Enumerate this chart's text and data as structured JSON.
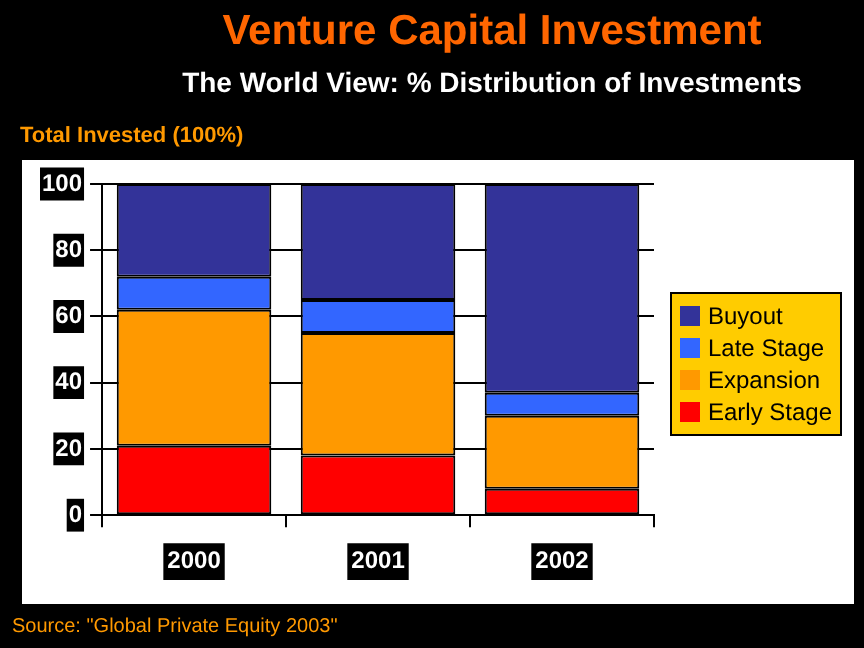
{
  "chart_data": {
    "type": "bar",
    "title": "Venture Capital Investment",
    "subtitle": "The World View: % Distribution of Investments",
    "ylabel": "Total Invested (100%)",
    "categories": [
      "2000",
      "2001",
      "2002"
    ],
    "series": [
      {
        "name": "Early Stage",
        "color": "#ff0000",
        "values": [
          21,
          18,
          8
        ]
      },
      {
        "name": "Expansion",
        "color": "#ff9900",
        "values": [
          41,
          37,
          22
        ]
      },
      {
        "name": "Late Stage",
        "color": "#3366ff",
        "values": [
          10,
          10,
          7
        ]
      },
      {
        "name": "Buyout",
        "color": "#333399",
        "values": [
          28,
          35,
          63
        ]
      }
    ],
    "stacked": true,
    "ylim": [
      0,
      100
    ],
    "yticks": [
      0,
      20,
      40,
      60,
      80,
      100
    ],
    "grid": "y",
    "legend": "right",
    "annotations": [
      "Source: \"Global Private Equity 2003\""
    ]
  }
}
